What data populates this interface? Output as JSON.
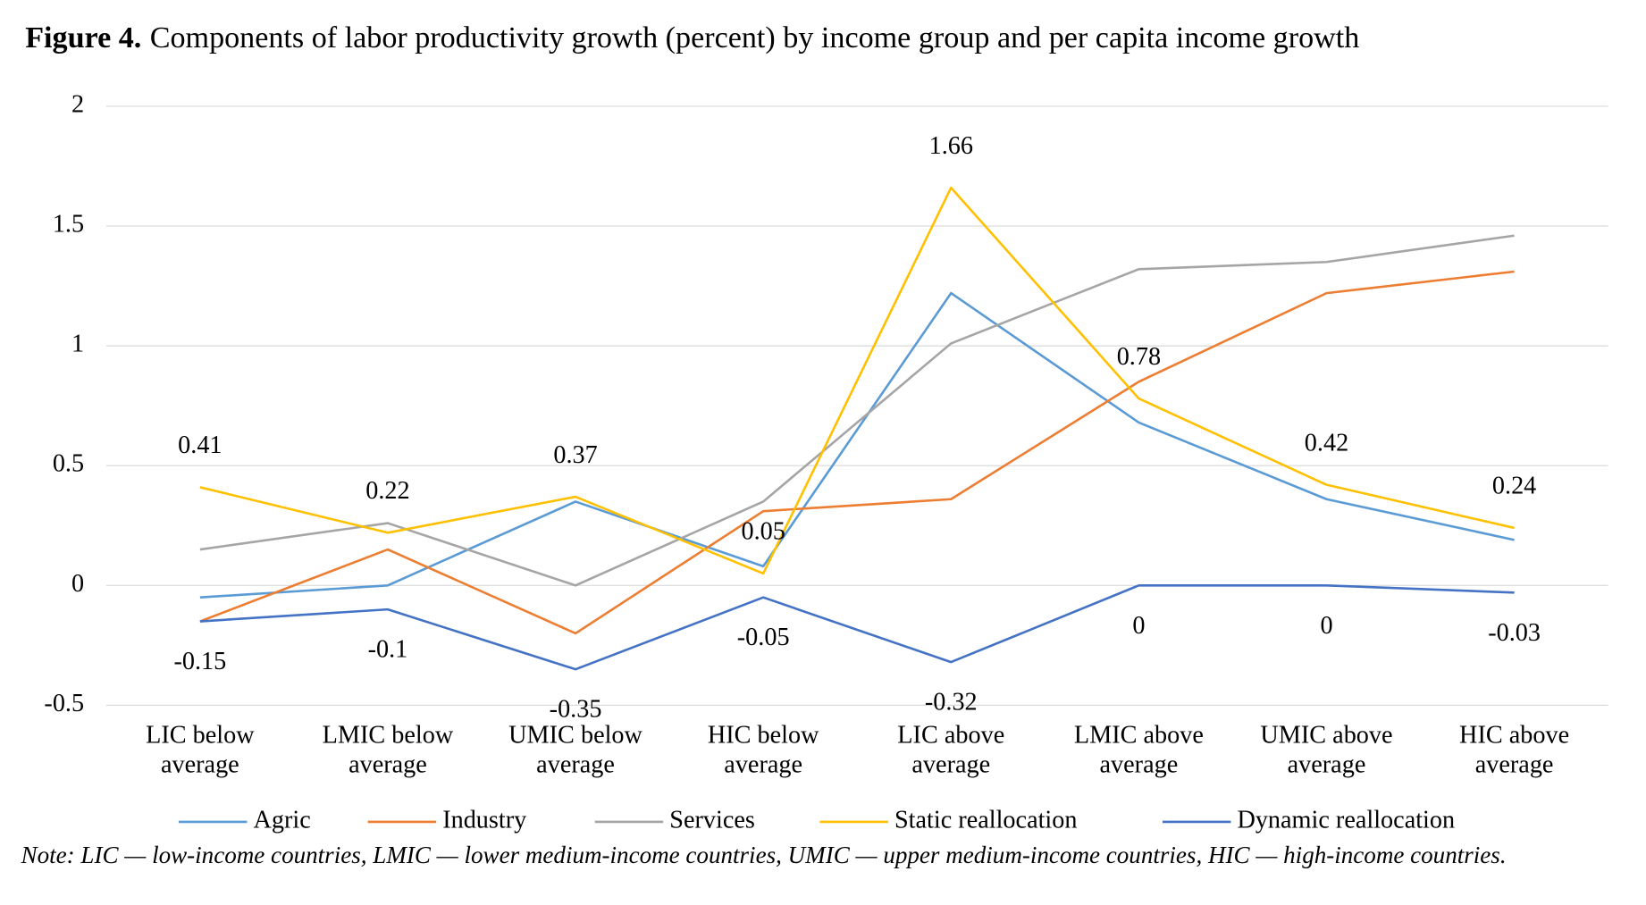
{
  "chart_data": {
    "type": "line",
    "title_label": "Figure 4.",
    "title": "Components of labor productivity growth (percent) by income group and per capita income growth",
    "note": "Note: LIC — low-income countries, LMIC — lower medium-income countries, UMIC — upper medium-income countries, HIC — high-income countries.",
    "categories": [
      "LIC below average",
      "LMIC below average",
      "UMIC below average",
      "HIC below average",
      "LIC above average",
      "LMIC above average",
      "UMIC above average",
      "HIC above average"
    ],
    "ylim": [
      -0.5,
      2
    ],
    "yticks": [
      -0.5,
      0,
      0.5,
      1,
      1.5,
      2
    ],
    "grid": true,
    "legend": "bottom",
    "series": [
      {
        "name": "Agric",
        "color": "#5b9bd5",
        "values": [
          -0.05,
          0,
          0.35,
          0.08,
          1.22,
          0.68,
          0.36,
          0.19
        ]
      },
      {
        "name": "Industry",
        "color": "#ed7d31",
        "values": [
          -0.15,
          0.15,
          -0.2,
          0.31,
          0.36,
          0.85,
          1.22,
          1.31
        ]
      },
      {
        "name": "Services",
        "color": "#a5a5a5",
        "values": [
          0.15,
          0.26,
          0,
          0.35,
          1.01,
          1.32,
          1.35,
          1.46
        ]
      },
      {
        "name": "Static reallocation",
        "color": "#ffc000",
        "values": [
          0.41,
          0.22,
          0.37,
          0.05,
          1.66,
          0.78,
          0.42,
          0.24
        ],
        "labels": "above"
      },
      {
        "name": "Dynamic reallocation",
        "color": "#4472c4",
        "values": [
          -0.15,
          -0.1,
          -0.35,
          -0.05,
          -0.32,
          0,
          0,
          -0.03
        ],
        "labels": "below"
      }
    ]
  }
}
